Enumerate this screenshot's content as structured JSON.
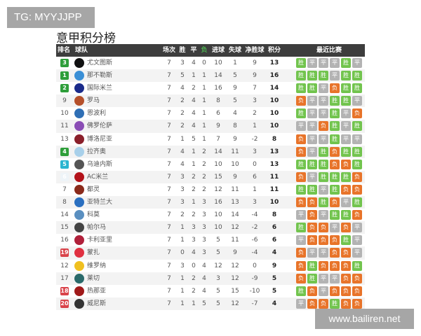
{
  "watermark_top": "TG: MYYJJPP",
  "watermark_bottom": "www.bailiren.net",
  "title": "意甲积分榜",
  "headers": {
    "rank": "排名",
    "team": "球队",
    "played": "场次",
    "win": "胜",
    "draw": "平",
    "loss": "负",
    "gf": "进球",
    "ga": "失球",
    "gd": "净胜球",
    "pts": "积分",
    "form": "最近比赛"
  },
  "colors": {
    "header_bg": "#3d3d3d",
    "loss_header": "#4caf50",
    "badge_cl": "#2e9e3a",
    "badge_el": "#2bb5d0",
    "badge_rel": "#d9434a",
    "win": "#72c44e",
    "draw": "#b3b3b3",
    "loss": "#e8742a"
  },
  "rows": [
    {
      "rank": "3",
      "badge": "cl",
      "team": "尤文图斯",
      "logo": "#111",
      "p": "7",
      "w": "3",
      "d": "4",
      "l": "0",
      "gf": "10",
      "ga": "1",
      "gd": "9",
      "pts": "13",
      "form": [
        "胜",
        "平",
        "平",
        "平",
        "胜",
        "平"
      ]
    },
    {
      "rank": "1",
      "badge": "cl",
      "team": "那不勒斯",
      "logo": "#3a8fd6",
      "p": "7",
      "w": "5",
      "l": "1",
      "d": "1",
      "gf": "14",
      "ga": "5",
      "gd": "9",
      "pts": "16",
      "form": [
        "胜",
        "胜",
        "胜",
        "平",
        "胜",
        "胜"
      ]
    },
    {
      "rank": "2",
      "badge": "cl",
      "team": "国际米兰",
      "logo": "#1a2a8a",
      "p": "7",
      "w": "4",
      "d": "2",
      "l": "1",
      "gf": "16",
      "ga": "9",
      "gd": "7",
      "pts": "14",
      "form": [
        "胜",
        "胜",
        "平",
        "负",
        "胜",
        "胜"
      ]
    },
    {
      "rank": "9",
      "badge": "",
      "team": "罗马",
      "logo": "#b5502a",
      "p": "7",
      "w": "2",
      "d": "4",
      "l": "1",
      "gf": "8",
      "ga": "5",
      "gd": "3",
      "pts": "10",
      "form": [
        "负",
        "平",
        "平",
        "胜",
        "胜",
        "平"
      ]
    },
    {
      "rank": "10",
      "badge": "",
      "team": "恩波利",
      "logo": "#2f6fb5",
      "p": "7",
      "w": "2",
      "d": "4",
      "l": "1",
      "gf": "6",
      "ga": "4",
      "gd": "2",
      "pts": "10",
      "form": [
        "胜",
        "平",
        "平",
        "胜",
        "平",
        "负"
      ]
    },
    {
      "rank": "11",
      "badge": "",
      "team": "佛罗伦萨",
      "logo": "#8a4db5",
      "p": "7",
      "w": "2",
      "d": "4",
      "l": "1",
      "gf": "9",
      "ga": "8",
      "gd": "1",
      "pts": "10",
      "form": [
        "平",
        "平",
        "负",
        "胜",
        "平",
        "胜"
      ]
    },
    {
      "rank": "13",
      "badge": "",
      "team": "博洛尼亚",
      "logo": "#8a1f2a",
      "p": "7",
      "w": "1",
      "d": "5",
      "l": "1",
      "gf": "7",
      "ga": "9",
      "gd": "-2",
      "pts": "8",
      "form": [
        "负",
        "平",
        "平",
        "胜",
        "平",
        "平"
      ]
    },
    {
      "rank": "4",
      "badge": "cl",
      "team": "拉齐奥",
      "logo": "#a8d0ea",
      "p": "7",
      "w": "4",
      "d": "1",
      "l": "2",
      "gf": "14",
      "ga": "11",
      "gd": "3",
      "pts": "13",
      "form": [
        "负",
        "平",
        "胜",
        "负",
        "胜",
        "胜"
      ]
    },
    {
      "rank": "5",
      "badge": "el",
      "team": "乌迪内斯",
      "logo": "#555",
      "p": "7",
      "w": "4",
      "d": "1",
      "l": "2",
      "gf": "10",
      "ga": "10",
      "gd": "0",
      "pts": "13",
      "form": [
        "胜",
        "胜",
        "胜",
        "负",
        "负",
        "胜"
      ]
    },
    {
      "rank": "6",
      "badge": "pale",
      "team": "AC米兰",
      "logo": "#b3121a",
      "p": "7",
      "w": "3",
      "d": "2",
      "l": "2",
      "gf": "15",
      "ga": "9",
      "gd": "6",
      "pts": "11",
      "form": [
        "负",
        "平",
        "胜",
        "胜",
        "胜",
        "负"
      ]
    },
    {
      "rank": "7",
      "badge": "",
      "team": "都灵",
      "logo": "#8a2a1a",
      "p": "7",
      "w": "3",
      "d": "2",
      "l": "2",
      "gf": "12",
      "ga": "11",
      "gd": "1",
      "pts": "11",
      "form": [
        "胜",
        "胜",
        "平",
        "胜",
        "负",
        "负"
      ]
    },
    {
      "rank": "8",
      "badge": "",
      "team": "亚特兰大",
      "logo": "#2a6fc0",
      "p": "7",
      "w": "3",
      "d": "1",
      "l": "3",
      "gf": "16",
      "ga": "13",
      "gd": "3",
      "pts": "10",
      "form": [
        "负",
        "负",
        "胜",
        "负",
        "平",
        "胜"
      ]
    },
    {
      "rank": "14",
      "badge": "",
      "team": "科莫",
      "logo": "#5a8fc0",
      "p": "7",
      "w": "2",
      "d": "2",
      "l": "3",
      "gf": "10",
      "ga": "14",
      "gd": "-4",
      "pts": "8",
      "form": [
        "平",
        "负",
        "平",
        "胜",
        "胜",
        "负"
      ]
    },
    {
      "rank": "15",
      "badge": "",
      "team": "帕尔马",
      "logo": "#444",
      "p": "7",
      "w": "1",
      "d": "3",
      "l": "3",
      "gf": "10",
      "ga": "12",
      "gd": "-2",
      "pts": "6",
      "form": [
        "胜",
        "负",
        "负",
        "平",
        "负",
        "平"
      ]
    },
    {
      "rank": "16",
      "badge": "",
      "team": "卡利亚里",
      "logo": "#b0203a",
      "p": "7",
      "w": "1",
      "d": "3",
      "l": "3",
      "gf": "5",
      "ga": "11",
      "gd": "-6",
      "pts": "6",
      "form": [
        "平",
        "负",
        "负",
        "负",
        "胜",
        "平"
      ]
    },
    {
      "rank": "19",
      "badge": "rel",
      "team": "蒙扎",
      "logo": "#e03040",
      "p": "7",
      "w": "0",
      "d": "4",
      "l": "3",
      "gf": "5",
      "ga": "9",
      "gd": "-4",
      "pts": "4",
      "form": [
        "负",
        "平",
        "平",
        "负",
        "负",
        "平"
      ]
    },
    {
      "rank": "12",
      "badge": "",
      "team": "维罗纳",
      "logo": "#f0c020",
      "p": "7",
      "w": "3",
      "d": "0",
      "l": "4",
      "gf": "12",
      "ga": "12",
      "gd": "0",
      "pts": "9",
      "form": [
        "负",
        "胜",
        "负",
        "负",
        "负",
        "胜"
      ]
    },
    {
      "rank": "17",
      "badge": "",
      "team": "莱切",
      "logo": "#2a6a6a",
      "p": "7",
      "w": "1",
      "d": "2",
      "l": "4",
      "gf": "3",
      "ga": "12",
      "gd": "-9",
      "pts": "5",
      "form": [
        "负",
        "胜",
        "平",
        "平",
        "负",
        "负"
      ]
    },
    {
      "rank": "18",
      "badge": "rel",
      "team": "热那亚",
      "logo": "#a01a1a",
      "p": "7",
      "w": "1",
      "d": "2",
      "l": "4",
      "gf": "5",
      "ga": "15",
      "gd": "-10",
      "pts": "5",
      "form": [
        "胜",
        "负",
        "平",
        "负",
        "负",
        "负"
      ]
    },
    {
      "rank": "20",
      "badge": "rel",
      "team": "威尼斯",
      "logo": "#333",
      "p": "7",
      "w": "1",
      "d": "1",
      "l": "5",
      "gf": "5",
      "ga": "12",
      "gd": "-7",
      "pts": "4",
      "form": [
        "平",
        "负",
        "负",
        "胜",
        "负",
        "负"
      ]
    }
  ]
}
